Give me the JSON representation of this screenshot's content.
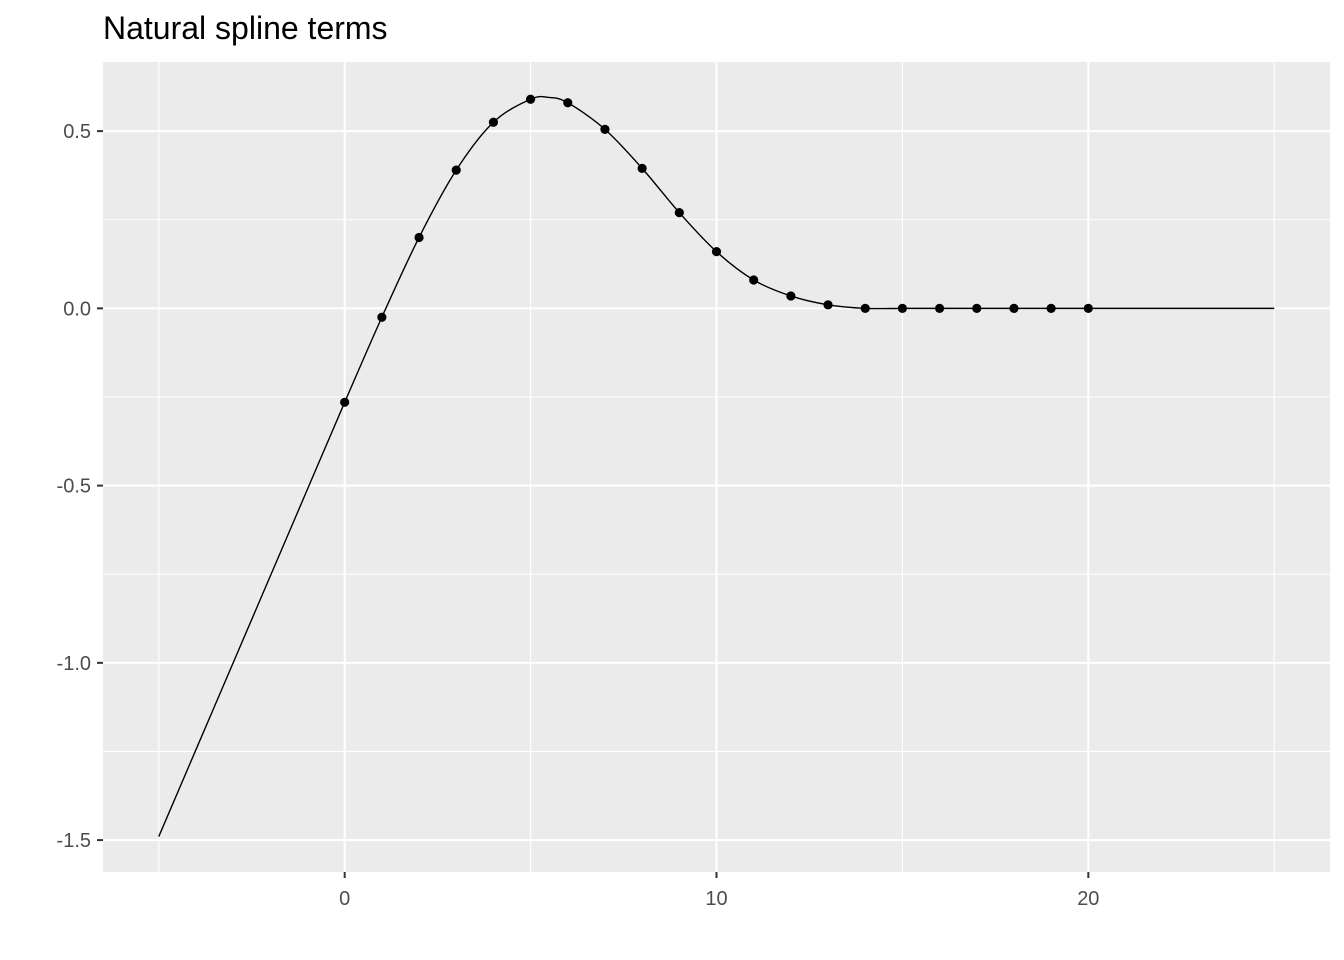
{
  "chart_data": {
    "type": "line",
    "title": "Natural spline terms",
    "xlabel": "",
    "ylabel": "",
    "xlim": [
      -6.5,
      26.5
    ],
    "ylim": [
      -1.59,
      0.695
    ],
    "grid": true,
    "x_ticks": [
      0,
      10,
      20
    ],
    "x_tick_labels": [
      "0",
      "10",
      "20"
    ],
    "y_ticks": [
      -1.5,
      -1.0,
      -0.5,
      0.0,
      0.5
    ],
    "y_tick_labels": [
      "-1.5",
      "-1.0",
      "-0.5",
      "0.0",
      "0.5"
    ],
    "colors": {
      "panel": "#ebebeb",
      "grid": "#ffffff",
      "line": "#000000",
      "point": "#000000",
      "tick_text": "#4d4d4d"
    },
    "series": [
      {
        "kind": "line",
        "x": [
          -5,
          -4,
          -3,
          -2,
          -1,
          0,
          1,
          2,
          3,
          4,
          5,
          5.5,
          6,
          7,
          8,
          9,
          10,
          11,
          12,
          13,
          14,
          15,
          16,
          17,
          18,
          19,
          20,
          21,
          22,
          23,
          24,
          25
        ],
        "y": [
          -1.49,
          -1.245,
          -1.0,
          -0.755,
          -0.51,
          -0.265,
          -0.025,
          0.2,
          0.39,
          0.525,
          0.59,
          0.595,
          0.58,
          0.505,
          0.395,
          0.27,
          0.16,
          0.08,
          0.035,
          0.01,
          0.0,
          0.0,
          0.0,
          0.0,
          0.0,
          0.0,
          0.0,
          0.0,
          0.0,
          0.0,
          0.0,
          0.0
        ]
      },
      {
        "kind": "points",
        "x": [
          0,
          1,
          2,
          3,
          4,
          5,
          6,
          7,
          8,
          9,
          10,
          11,
          12,
          13,
          14,
          15,
          16,
          17,
          18,
          19,
          20
        ],
        "y": [
          -0.265,
          -0.025,
          0.2,
          0.39,
          0.525,
          0.59,
          0.58,
          0.505,
          0.395,
          0.27,
          0.16,
          0.08,
          0.035,
          0.01,
          0.0,
          0.0,
          0.0,
          0.0,
          0.0,
          0.0,
          0.0
        ]
      }
    ]
  }
}
